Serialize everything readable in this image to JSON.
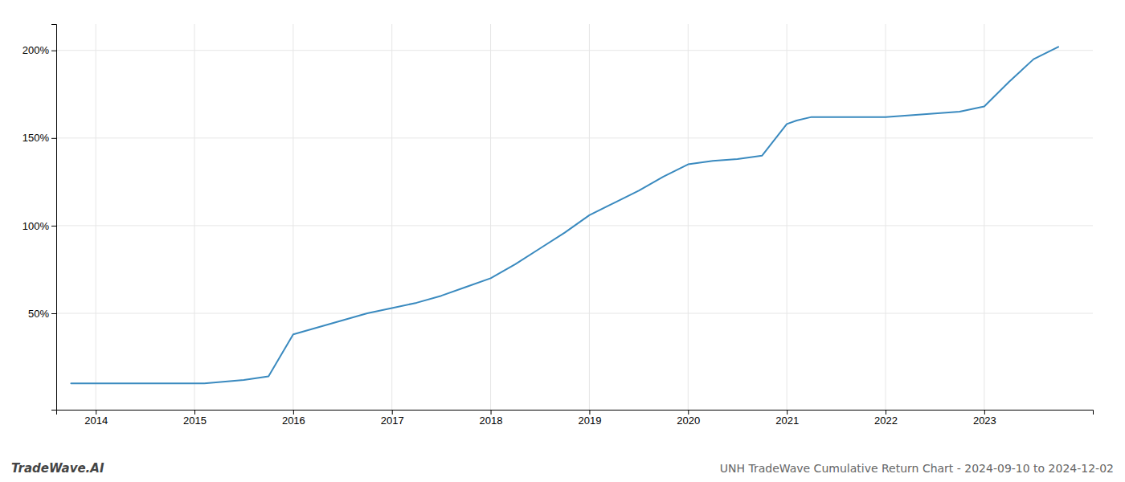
{
  "chart_data": {
    "type": "line",
    "title": "UNH TradeWave Cumulative Return Chart - 2024-09-10 to 2024-12-02",
    "annotations": [
      "TradeWave.AI"
    ],
    "x": [
      2013.75,
      2014.0,
      2014.25,
      2014.5,
      2014.75,
      2015.0,
      2015.1,
      2015.5,
      2015.75,
      2016.0,
      2016.25,
      2016.5,
      2016.75,
      2017.0,
      2017.25,
      2017.5,
      2017.75,
      2018.0,
      2018.25,
      2018.5,
      2018.75,
      2019.0,
      2019.25,
      2019.5,
      2019.75,
      2020.0,
      2020.25,
      2020.5,
      2020.75,
      2021.0,
      2021.1,
      2021.25,
      2021.5,
      2021.75,
      2022.0,
      2022.25,
      2022.5,
      2022.75,
      2023.0,
      2023.25,
      2023.5,
      2023.75
    ],
    "values": [
      10,
      10,
      10,
      10,
      10,
      10,
      10,
      12,
      14,
      38,
      42,
      46,
      50,
      53,
      56,
      60,
      65,
      70,
      78,
      87,
      96,
      106,
      113,
      120,
      128,
      135,
      137,
      138,
      140,
      158,
      160,
      162,
      162,
      162,
      162,
      163,
      164,
      165,
      168,
      182,
      195,
      202
    ],
    "color": "#3a8abf",
    "xlim": [
      2013.6,
      2024.1
    ],
    "ylim": [
      -5,
      215
    ],
    "xticks": [
      2014,
      2015,
      2016,
      2017,
      2018,
      2019,
      2020,
      2021,
      2022,
      2023
    ],
    "yticks": [
      {
        "value": 50,
        "label": "50%"
      },
      {
        "value": 100,
        "label": "100%"
      },
      {
        "value": 150,
        "label": "150%"
      },
      {
        "value": 200,
        "label": "200%"
      }
    ],
    "grid": true
  }
}
